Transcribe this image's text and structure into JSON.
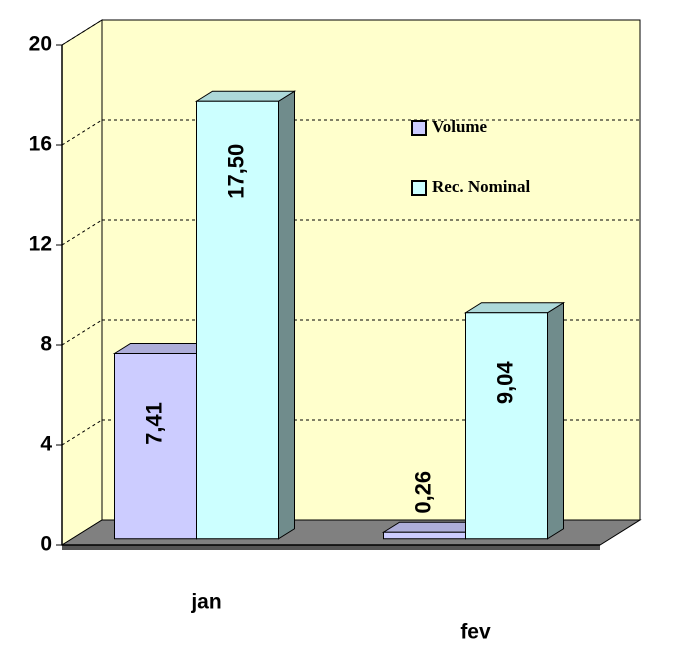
{
  "chart_data": {
    "type": "bar3d",
    "categories": [
      "jan",
      "fev"
    ],
    "series": [
      {
        "name": "Volume",
        "color": "#ccccff",
        "values": [
          7.41,
          0.26
        ],
        "value_labels": [
          "7,41",
          "0,26"
        ]
      },
      {
        "name": "Rec. Nominal",
        "color": "#ccffff",
        "values": [
          17.5,
          9.04
        ],
        "value_labels": [
          "17,50",
          "9,04"
        ]
      }
    ],
    "ylim": [
      0,
      20
    ],
    "yticks": [
      0,
      4,
      8,
      12,
      16,
      20
    ],
    "grid": true
  }
}
